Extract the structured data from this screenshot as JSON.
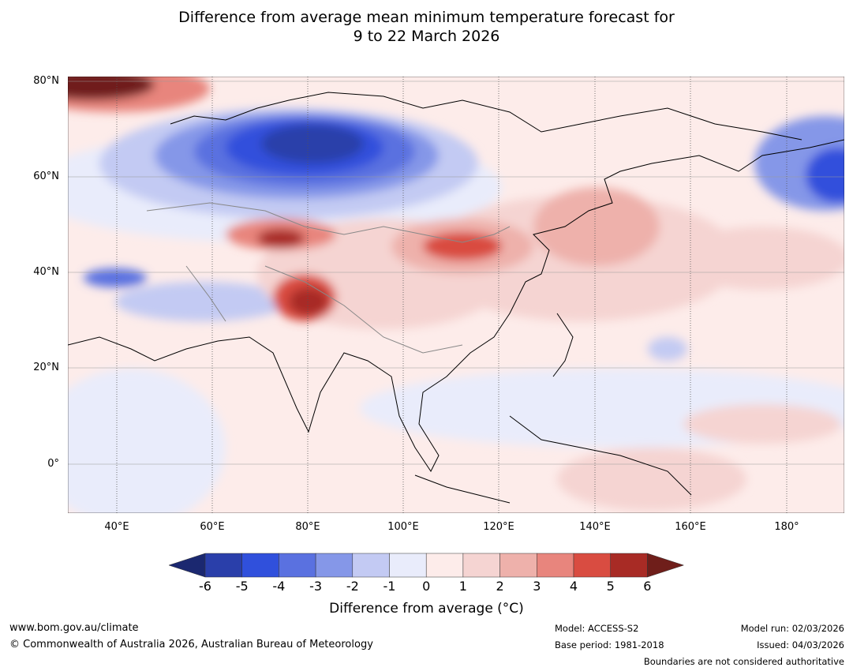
{
  "title": {
    "line1": "Difference from average mean minimum temperature forecast for",
    "line2": "9 to 22 March 2026"
  },
  "map": {
    "lat_labels": [
      "80°N",
      "60°N",
      "40°N",
      "20°N",
      "0°"
    ],
    "lon_labels": [
      "40°E",
      "60°E",
      "80°E",
      "100°E",
      "120°E",
      "140°E",
      "160°E",
      "180°"
    ]
  },
  "colorbar": {
    "label": "Difference from average (°C)",
    "ticks": [
      "-6",
      "-5",
      "-4",
      "-3",
      "-2",
      "-1",
      "0",
      "1",
      "2",
      "3",
      "4",
      "5",
      "6"
    ],
    "colors": [
      "#2a3faa",
      "#3050dc",
      "#5a71e0",
      "#8597e8",
      "#c3caf3",
      "#e9ecfb",
      "#fdecea",
      "#f5d4d2",
      "#eeb1ab",
      "#e8857d",
      "#d94c41",
      "#a82b25"
    ],
    "extend_low": "#1b2870",
    "extend_high": "#6f1e1a"
  },
  "footer": {
    "website": "www.bom.gov.au/climate",
    "copyright": "© Commonwealth of Australia 2026, Australian Bureau of Meteorology",
    "model": "Model: ACCESS-S2",
    "base_period": "Base period: 1981-2018",
    "model_run": "Model run: 02/03/2026",
    "issued": "Issued: 04/03/2026",
    "disclaimer": "Boundaries are not considered authoritative"
  }
}
